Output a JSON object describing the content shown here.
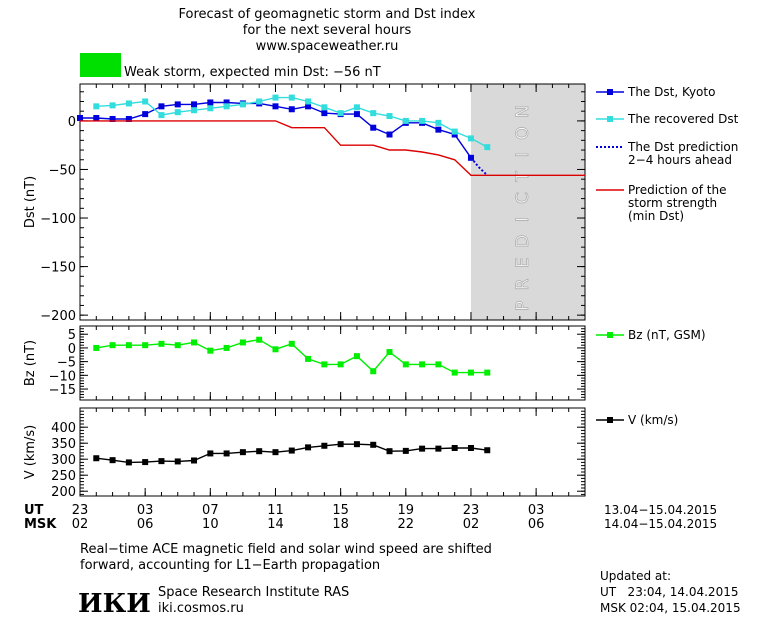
{
  "header": {
    "title_line1": "Forecast of geomagnetic storm and Dst index",
    "title_line2": "for the next several hours",
    "website": "www.spaceweather.ru",
    "status_color": "#00e000",
    "status_text": "Weak storm, expected min Dst: −56 nT"
  },
  "chart_data": [
    {
      "type": "line",
      "name": "dst-panel",
      "ylabel": "Dst (nT)",
      "ylim": [
        -205,
        38
      ],
      "yticks": [
        0,
        -50,
        -100,
        -150,
        -200
      ],
      "ytick_labels": [
        "0",
        "−50",
        "−100",
        "−150",
        "−200"
      ],
      "xlim": [
        23,
        54
      ],
      "prediction_region": [
        47,
        54
      ],
      "prediction_label": "PREDICTION",
      "series": [
        {
          "name": "The Dst, Kyoto",
          "color": "#0000dd",
          "marker": "square",
          "x": [
            23,
            24,
            25,
            26,
            27,
            28,
            29,
            30,
            31,
            32,
            33,
            34,
            35,
            36,
            37,
            38,
            39,
            40,
            41,
            42,
            43,
            44,
            45,
            46,
            47
          ],
          "y": [
            3,
            3,
            2,
            2,
            7,
            15,
            17,
            17,
            19,
            19,
            18,
            18,
            15,
            12,
            15,
            8,
            7,
            7,
            -7,
            -14,
            -2,
            -2,
            -9,
            -14,
            -38
          ]
        },
        {
          "name": "The recovered Dst",
          "color": "#33dddd",
          "marker": "square",
          "x": [
            24,
            25,
            26,
            27,
            28,
            29,
            30,
            31,
            32,
            33,
            34,
            35,
            36,
            37,
            38,
            39,
            40,
            41,
            42,
            43,
            44,
            45,
            46,
            47,
            48
          ],
          "y": [
            15,
            16,
            18,
            20,
            6,
            9,
            11,
            13,
            15,
            17,
            20,
            24,
            24,
            20,
            14,
            8,
            14,
            8,
            5,
            0,
            0,
            -2,
            -11,
            -18,
            -27
          ]
        },
        {
          "name": "The Dst prediction",
          "name_line2": "2−4 hours ahead",
          "color": "#0000dd",
          "dashed": true,
          "x": [
            47,
            47.5,
            48
          ],
          "y": [
            -38,
            -48,
            -56
          ]
        },
        {
          "name": "Prediction of the",
          "name_line2": "storm strength",
          "name_line3": "(min Dst)",
          "color": "#dd0000",
          "marker": "none",
          "step": true,
          "x": [
            23,
            35,
            36,
            38,
            38,
            39,
            40,
            41,
            42,
            43,
            44,
            45,
            46,
            47,
            48,
            54
          ],
          "y": [
            0,
            0,
            -7,
            -7,
            -7,
            -25,
            -25,
            -25,
            -30,
            -30,
            -32,
            -35,
            -40,
            -56,
            -56,
            -56
          ]
        }
      ]
    },
    {
      "type": "line",
      "name": "bz-panel",
      "ylabel": "Bz (nT)",
      "ylim": [
        -19,
        8
      ],
      "yticks": [
        5,
        0,
        -5,
        -10,
        -15
      ],
      "ytick_labels": [
        "5",
        "0",
        "−5",
        "−10",
        "−15"
      ],
      "xlim": [
        23,
        54
      ],
      "series": [
        {
          "name": "Bz (nT, GSM)",
          "color": "#00ee00",
          "marker": "square",
          "x": [
            24,
            25,
            26,
            27,
            28,
            29,
            30,
            31,
            32,
            33,
            34,
            35,
            36,
            37,
            38,
            39,
            40,
            41,
            42,
            43,
            44,
            45,
            46,
            47,
            48
          ],
          "y": [
            0,
            1,
            1,
            1,
            1.5,
            1,
            2,
            -1,
            0,
            2,
            3,
            -0.5,
            1.5,
            -4,
            -6,
            -6,
            -3,
            -8.5,
            -1.5,
            -6,
            -6,
            -6,
            -9,
            -9,
            -9
          ]
        }
      ]
    },
    {
      "type": "line",
      "name": "v-panel",
      "ylabel": "V (km/s)",
      "ylim": [
        185,
        460
      ],
      "yticks": [
        400,
        350,
        300,
        250,
        200
      ],
      "ytick_labels": [
        "400",
        "350",
        "300",
        "250",
        "200"
      ],
      "xlim": [
        23,
        54
      ],
      "series": [
        {
          "name": "V (km/s)",
          "color": "#000000",
          "marker": "square",
          "x": [
            24,
            25,
            26,
            27,
            28,
            29,
            30,
            31,
            32,
            33,
            34,
            35,
            36,
            37,
            38,
            39,
            40,
            41,
            42,
            43,
            44,
            45,
            46,
            47,
            48
          ],
          "y": [
            303,
            297,
            290,
            291,
            294,
            293,
            296,
            318,
            318,
            322,
            325,
            322,
            327,
            337,
            342,
            347,
            347,
            345,
            325,
            326,
            333,
            333,
            335,
            335,
            328
          ]
        }
      ]
    }
  ],
  "x_axis": {
    "ut_label": "UT",
    "msk_label": "MSK",
    "ticks": [
      23,
      27,
      31,
      35,
      39,
      43,
      47,
      51,
      55
    ],
    "ut_labels": [
      "23",
      "03",
      "07",
      "11",
      "15",
      "19",
      "23",
      "03"
    ],
    "msk_labels": [
      "02",
      "06",
      "10",
      "14",
      "18",
      "22",
      "02",
      "06"
    ],
    "ut_tick_values": [
      23,
      27,
      31,
      35,
      39,
      43,
      47,
      51
    ],
    "ut_range": "13.04−15.04.2015",
    "msk_range": "14.04−15.04.2015"
  },
  "footer": {
    "note_line1": "Real−time ACE magnetic field and solar wind speed are shifted",
    "note_line2": "forward, accounting for L1−Earth propagation",
    "institute_logo": "ИКИ",
    "institute_name": "Space Research Institute RAS",
    "institute_url": "iki.cosmos.ru",
    "updated_label": "Updated at:",
    "updated_ut": "UT   23:04, 14.04.2015",
    "updated_msk": "MSK 02:04, 15.04.2015"
  }
}
